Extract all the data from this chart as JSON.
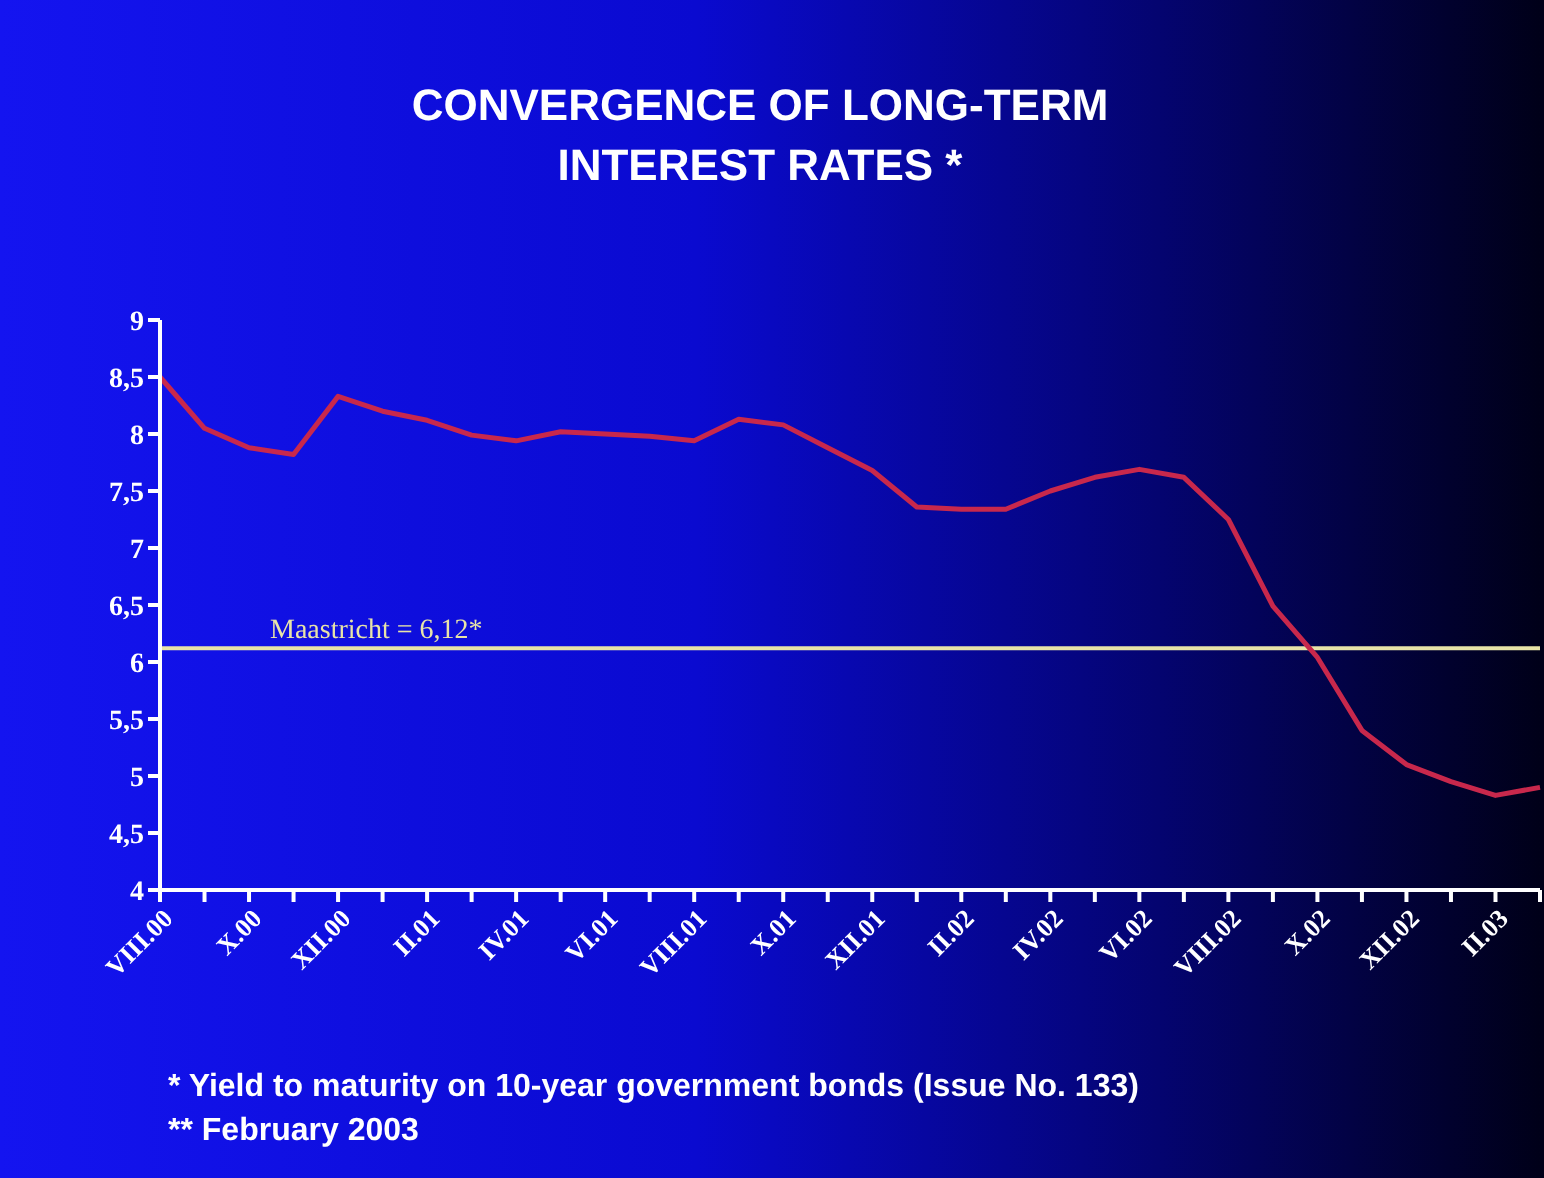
{
  "chart_data": {
    "type": "line",
    "title": "CONVERGENCE OF LONG-TERM INTEREST RATES *",
    "categories": [
      "VIII.00",
      null,
      "X.00",
      null,
      "XII.00",
      null,
      "II.01",
      null,
      "IV.01",
      null,
      "VI.01",
      null,
      "VIII.01",
      null,
      "X.01",
      null,
      "XII.01",
      null,
      "II.02",
      null,
      "IV.02",
      null,
      "VI.02",
      null,
      "VIII.02",
      null,
      "X.02",
      null,
      "XII.02",
      null,
      "II.03",
      null
    ],
    "series": [
      {
        "color": "#c8284c",
        "values": [
          8.5,
          8.05,
          7.88,
          7.82,
          8.33,
          8.2,
          8.12,
          7.99,
          7.94,
          8.02,
          8.0,
          7.98,
          7.94,
          8.13,
          8.08,
          7.88,
          7.68,
          7.36,
          7.34,
          7.34,
          7.5,
          7.62,
          7.69,
          7.62,
          7.25,
          6.49,
          6.04,
          5.4,
          5.1,
          4.95,
          4.83,
          4.9
        ]
      }
    ],
    "ylim": [
      4,
      9
    ],
    "yticks": [
      4,
      {
        "value": 4.5,
        "label": "4,5"
      },
      5,
      {
        "value": 5.5,
        "label": "5,5"
      },
      6,
      {
        "value": 6.5,
        "label": "6,5"
      },
      7,
      {
        "value": 7.5,
        "label": "7,5"
      },
      8,
      {
        "value": 8.5,
        "label": "8,5"
      },
      9
    ],
    "ref_lines": [
      {
        "axis": "y",
        "value": 6.12,
        "label": "Maastricht = 6,12*",
        "color": "#e8e4a8"
      }
    ],
    "annotations": [
      "* Yield to maturity on 10-year government bonds (Issue No. 133)",
      "** February 2003"
    ],
    "grid": false,
    "legend": false,
    "marker": "none",
    "line_style": "solid"
  }
}
